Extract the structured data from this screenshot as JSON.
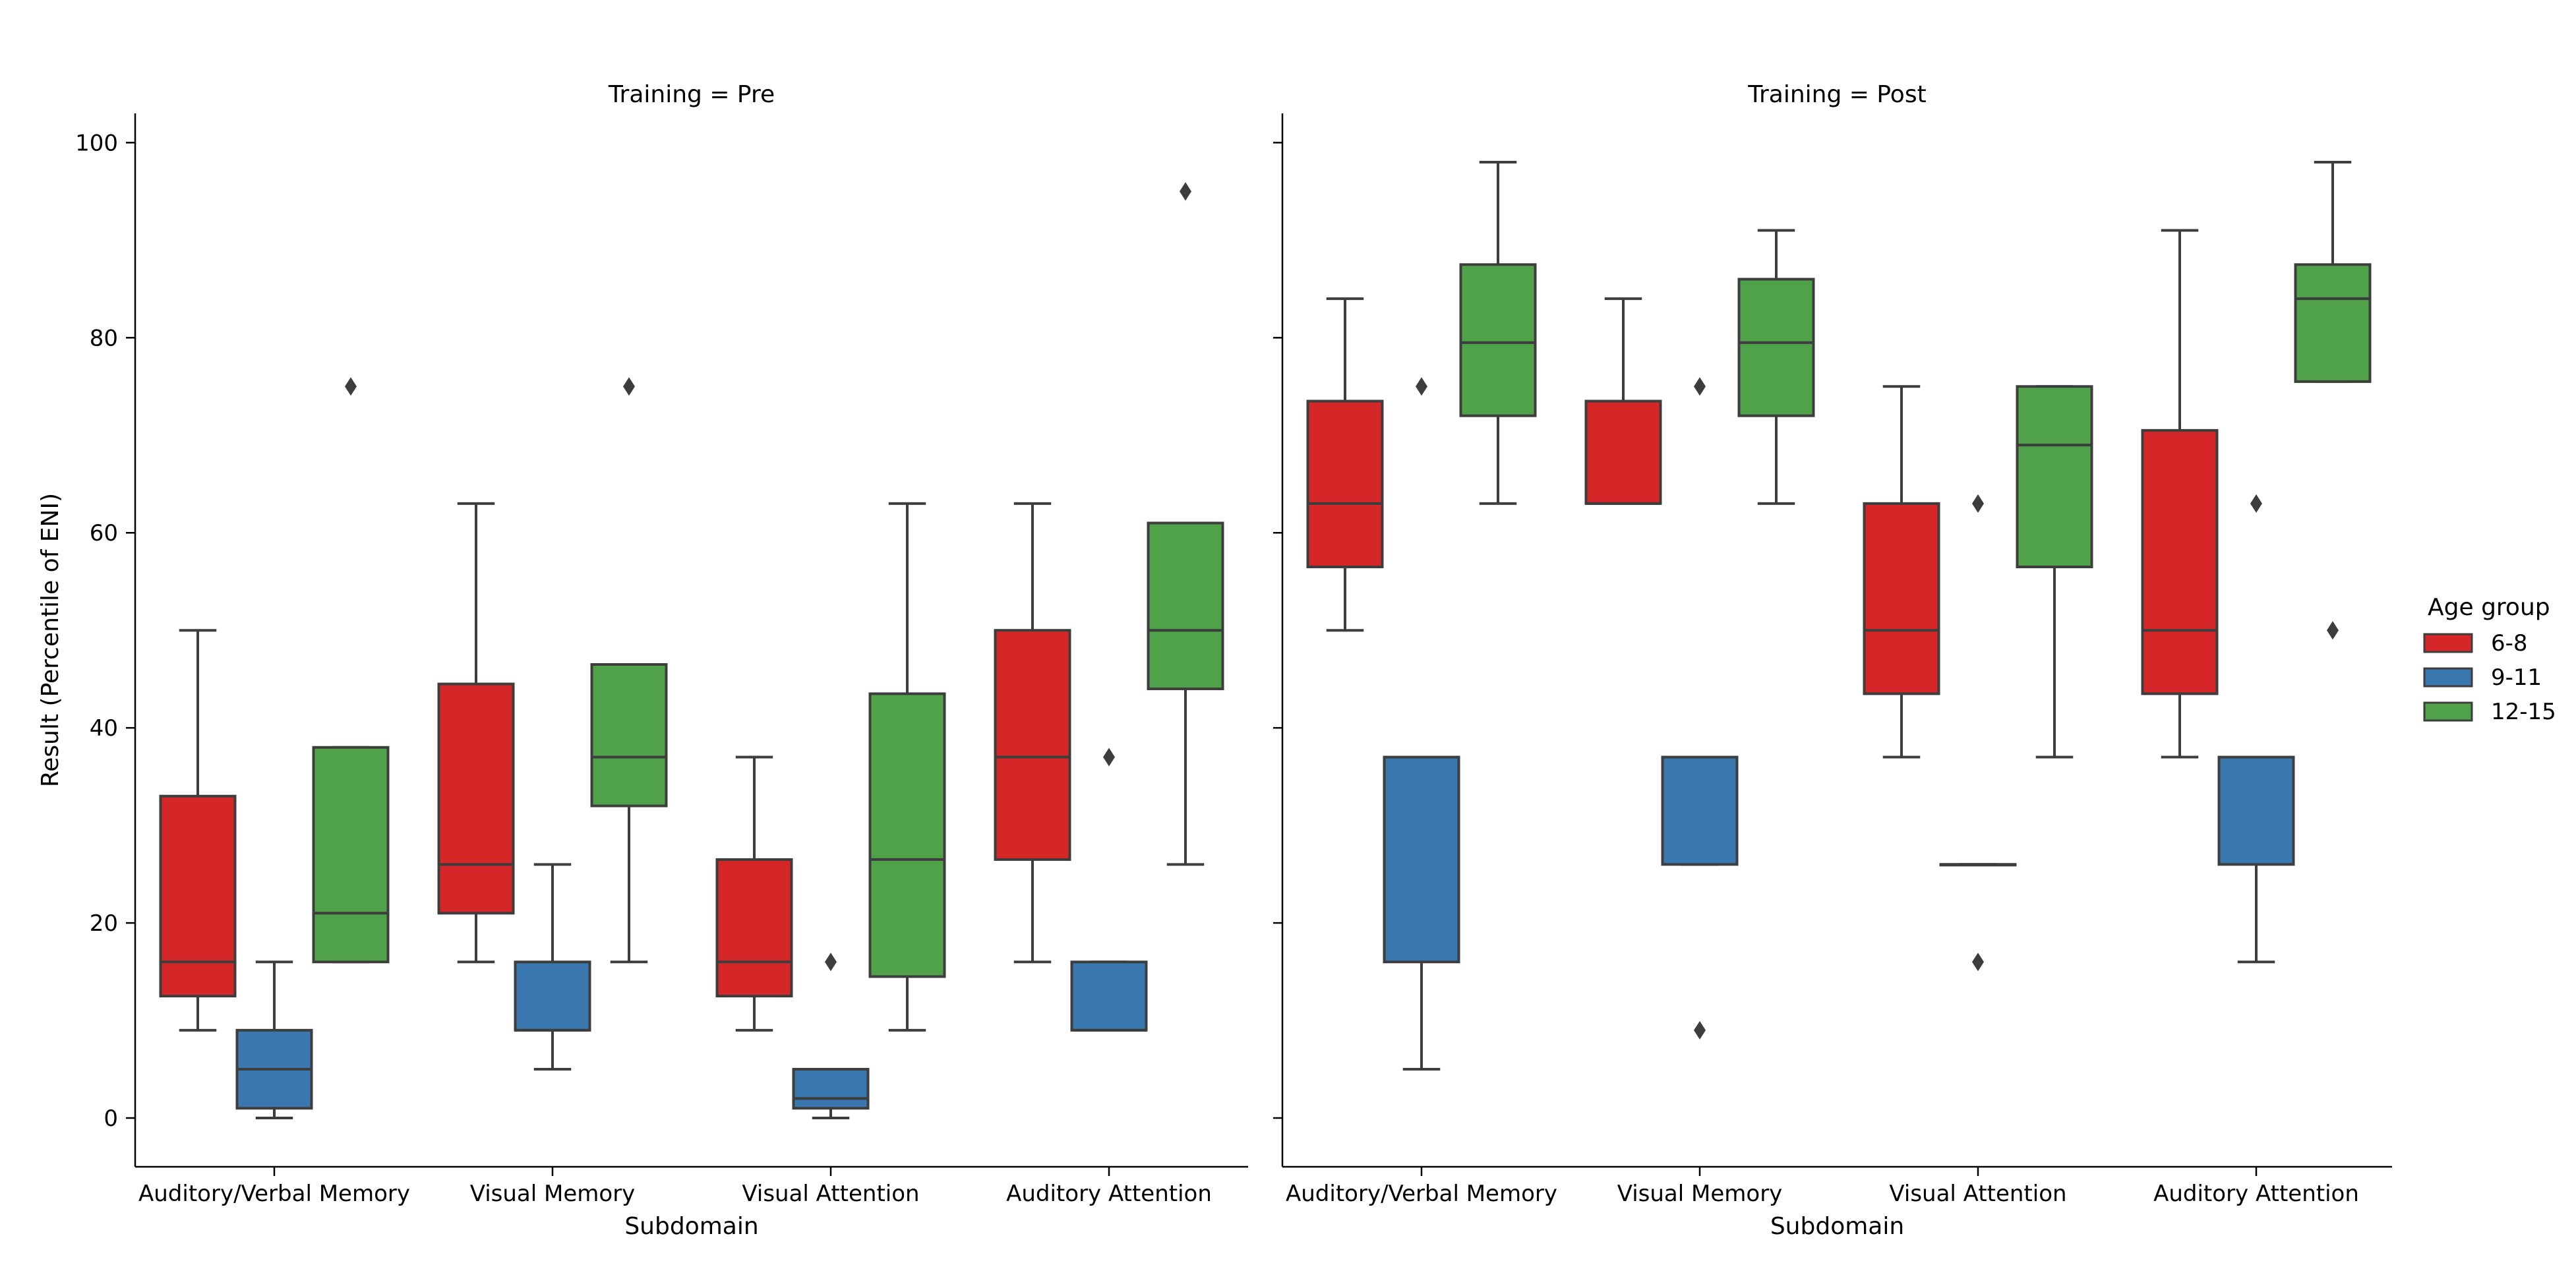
{
  "chart_data": {
    "type": "boxplot",
    "ylabel": "Result (Percentile of ENI)",
    "xlabel": "Subdomain",
    "ylim": [
      -5,
      103
    ],
    "yticks": [
      0,
      20,
      40,
      60,
      80,
      100
    ],
    "categories": [
      "Auditory/Verbal Memory",
      "Visual Memory",
      "Visual Attention",
      "Auditory Attention"
    ],
    "groups": [
      {
        "name": "6-8",
        "color": "#d62728"
      },
      {
        "name": "9-11",
        "color": "#3a77ae"
      },
      {
        "name": "12-15",
        "color": "#4fa24a"
      }
    ],
    "legend": {
      "title": "Age group",
      "position": "right"
    },
    "panels": [
      {
        "title": "Training = Pre",
        "boxes": [
          [
            {
              "q1": 12.5,
              "median": 16,
              "q3": 33,
              "whislo": 9,
              "whishi": 50,
              "fliers": []
            },
            {
              "q1": 1,
              "median": 5,
              "q3": 9,
              "whislo": 0,
              "whishi": 16,
              "fliers": []
            },
            {
              "q1": 16,
              "median": 21,
              "q3": 38,
              "whislo": 16,
              "whishi": 38,
              "fliers": [
                75
              ]
            }
          ],
          [
            {
              "q1": 21,
              "median": 26,
              "q3": 44.5,
              "whislo": 16,
              "whishi": 63,
              "fliers": []
            },
            {
              "q1": 9,
              "median": 9,
              "q3": 16,
              "whislo": 5,
              "whishi": 26,
              "fliers": []
            },
            {
              "q1": 32,
              "median": 37,
              "q3": 46.5,
              "whislo": 16,
              "whishi": 46.5,
              "fliers": [
                75
              ]
            }
          ],
          [
            {
              "q1": 12.5,
              "median": 16,
              "q3": 26.5,
              "whislo": 9,
              "whishi": 37,
              "fliers": []
            },
            {
              "q1": 1,
              "median": 2,
              "q3": 5,
              "whislo": 0,
              "whishi": 5,
              "fliers": [
                16
              ]
            },
            {
              "q1": 14.5,
              "median": 26.5,
              "q3": 43.5,
              "whislo": 9,
              "whishi": 63,
              "fliers": []
            }
          ],
          [
            {
              "q1": 26.5,
              "median": 37,
              "q3": 50,
              "whislo": 16,
              "whishi": 63,
              "fliers": []
            },
            {
              "q1": 9,
              "median": 9,
              "q3": 16,
              "whislo": 9,
              "whishi": 16,
              "fliers": [
                37
              ]
            },
            {
              "q1": 44,
              "median": 50,
              "q3": 61,
              "whislo": 26,
              "whishi": 61,
              "fliers": [
                95
              ]
            }
          ]
        ]
      },
      {
        "title": "Training = Post",
        "boxes": [
          [
            {
              "q1": 56.5,
              "median": 63,
              "q3": 73.5,
              "whislo": 50,
              "whishi": 84,
              "fliers": []
            },
            {
              "q1": 16,
              "median": 37,
              "q3": 37,
              "whislo": 5,
              "whishi": 37,
              "fliers": [
                75
              ]
            },
            {
              "q1": 72,
              "median": 79.5,
              "q3": 87.5,
              "whislo": 63,
              "whishi": 98,
              "fliers": []
            }
          ],
          [
            {
              "q1": 63,
              "median": 63,
              "q3": 73.5,
              "whislo": 63,
              "whishi": 84,
              "fliers": []
            },
            {
              "q1": 26,
              "median": 37,
              "q3": 37,
              "whislo": 26,
              "whishi": 37,
              "fliers": [
                9,
                75
              ]
            },
            {
              "q1": 72,
              "median": 79.5,
              "q3": 86,
              "whislo": 63,
              "whishi": 91,
              "fliers": []
            }
          ],
          [
            {
              "q1": 43.5,
              "median": 50,
              "q3": 63,
              "whislo": 37,
              "whishi": 75,
              "fliers": []
            },
            {
              "q1": 26,
              "median": 26,
              "q3": 26,
              "whislo": 26,
              "whishi": 26,
              "fliers": [
                16,
                63
              ]
            },
            {
              "q1": 56.5,
              "median": 69,
              "q3": 75,
              "whislo": 37,
              "whishi": 75,
              "fliers": []
            }
          ],
          [
            {
              "q1": 43.5,
              "median": 50,
              "q3": 70.5,
              "whislo": 37,
              "whishi": 91,
              "fliers": []
            },
            {
              "q1": 26,
              "median": 37,
              "q3": 37,
              "whislo": 16,
              "whishi": 37,
              "fliers": [
                63
              ]
            },
            {
              "q1": 75.5,
              "median": 84,
              "q3": 87.5,
              "whislo": 75.5,
              "whishi": 98,
              "fliers": [
                50
              ]
            }
          ]
        ]
      }
    ]
  }
}
